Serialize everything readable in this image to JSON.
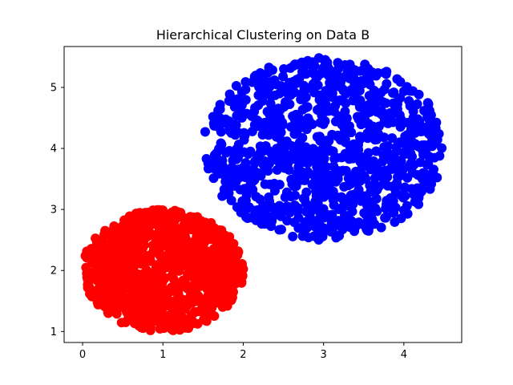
{
  "chart_data": {
    "type": "scatter",
    "title": "Hierarchical Clustering on Data B",
    "xlabel": "",
    "ylabel": "",
    "xlim": [
      -0.23,
      4.72
    ],
    "ylim": [
      0.82,
      5.67
    ],
    "xticks": [
      0,
      1,
      2,
      3,
      4
    ],
    "yticks": [
      1,
      2,
      3,
      4,
      5
    ],
    "grid": false,
    "legend": "none",
    "series": [
      {
        "color": "#ff0000",
        "marker": "circle",
        "count": 1000,
        "region": {
          "shape": "ellipse",
          "center": [
            1.0,
            2.0
          ],
          "radius": [
            1.0,
            1.0
          ]
        }
      },
      {
        "color": "#0000ff",
        "marker": "circle",
        "count": 1000,
        "region": {
          "shape": "ellipse",
          "center": [
            3.0,
            4.0
          ],
          "radius": [
            1.5,
            1.5
          ]
        }
      }
    ]
  }
}
